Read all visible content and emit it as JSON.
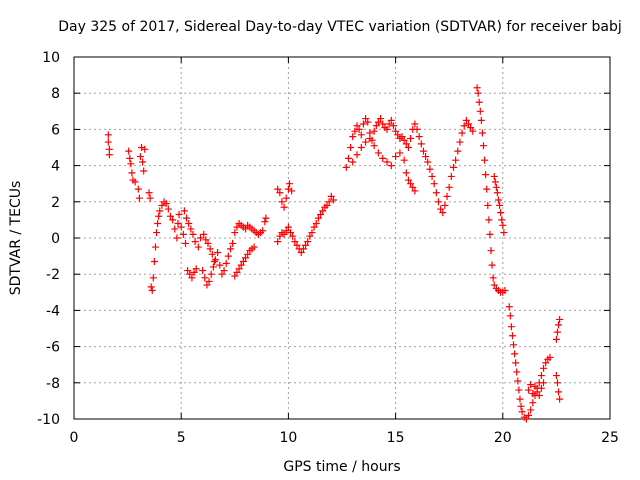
{
  "chart_data": {
    "type": "scatter",
    "title": "Day 325 of 2017, Sidereal Day-to-day VTEC variation (SDTVAR) for receiver babj",
    "xlabel": "GPS time / hours",
    "ylabel": "SDTVAR / TECUs",
    "xlim": [
      0,
      25
    ],
    "ylim": [
      -10,
      10
    ],
    "x_ticks": [
      0,
      5,
      10,
      15,
      20,
      25
    ],
    "y_ticks": [
      -10,
      -8,
      -6,
      -4,
      -2,
      0,
      2,
      4,
      6,
      8,
      10
    ],
    "grid": true,
    "legend": "none",
    "marker": "plus",
    "color": "#ff0000",
    "points": [
      [
        1.6,
        5.7
      ],
      [
        1.6,
        5.3
      ],
      [
        1.65,
        4.9
      ],
      [
        1.65,
        4.6
      ],
      [
        2.55,
        4.8
      ],
      [
        2.6,
        4.4
      ],
      [
        2.65,
        4.1
      ],
      [
        2.7,
        3.6
      ],
      [
        2.75,
        3.2
      ],
      [
        2.85,
        3.1
      ],
      [
        3.0,
        2.7
      ],
      [
        3.05,
        2.2
      ],
      [
        3.1,
        4.5
      ],
      [
        3.15,
        5.0
      ],
      [
        3.2,
        4.2
      ],
      [
        3.25,
        3.7
      ],
      [
        3.3,
        4.9
      ],
      [
        3.5,
        2.5
      ],
      [
        3.55,
        2.2
      ],
      [
        3.6,
        -2.7
      ],
      [
        3.65,
        -2.9
      ],
      [
        3.7,
        -2.2
      ],
      [
        3.75,
        -1.3
      ],
      [
        3.8,
        -0.5
      ],
      [
        3.85,
        0.3
      ],
      [
        3.9,
        0.8
      ],
      [
        3.95,
        1.2
      ],
      [
        4.0,
        1.5
      ],
      [
        4.1,
        1.8
      ],
      [
        4.2,
        2.0
      ],
      [
        4.3,
        1.9
      ],
      [
        4.4,
        1.6
      ],
      [
        4.5,
        1.2
      ],
      [
        4.6,
        1.0
      ],
      [
        4.7,
        0.5
      ],
      [
        4.8,
        0.0
      ],
      [
        4.85,
        0.8
      ],
      [
        4.9,
        1.3
      ],
      [
        5.0,
        0.6
      ],
      [
        5.1,
        0.2
      ],
      [
        5.2,
        -0.3
      ],
      [
        5.3,
        -1.8
      ],
      [
        5.4,
        -2.0
      ],
      [
        5.5,
        -2.2
      ],
      [
        5.6,
        -1.9
      ],
      [
        5.7,
        -1.7
      ],
      [
        5.15,
        1.5
      ],
      [
        5.25,
        1.1
      ],
      [
        5.35,
        0.8
      ],
      [
        5.45,
        0.5
      ],
      [
        5.55,
        0.2
      ],
      [
        5.65,
        -0.2
      ],
      [
        5.8,
        -0.5
      ],
      [
        5.9,
        0.0
      ],
      [
        6.0,
        -1.8
      ],
      [
        6.1,
        -2.2
      ],
      [
        6.2,
        -2.6
      ],
      [
        6.3,
        -2.4
      ],
      [
        6.4,
        -2.0
      ],
      [
        6.5,
        -1.6
      ],
      [
        6.6,
        -1.2
      ],
      [
        6.7,
        -0.8
      ],
      [
        6.8,
        -1.5
      ],
      [
        6.9,
        -2.0
      ],
      [
        7.0,
        -1.8
      ],
      [
        6.05,
        0.2
      ],
      [
        6.15,
        -0.1
      ],
      [
        6.25,
        -0.3
      ],
      [
        6.35,
        -0.6
      ],
      [
        6.45,
        -0.9
      ],
      [
        6.55,
        -1.3
      ],
      [
        7.1,
        -1.4
      ],
      [
        7.2,
        -1.0
      ],
      [
        7.3,
        -0.6
      ],
      [
        7.4,
        -0.3
      ],
      [
        7.5,
        0.3
      ],
      [
        7.6,
        0.6
      ],
      [
        7.7,
        0.8
      ],
      [
        7.8,
        0.7
      ],
      [
        7.9,
        0.6
      ],
      [
        8.0,
        0.5
      ],
      [
        8.1,
        0.7
      ],
      [
        8.2,
        0.6
      ],
      [
        8.3,
        0.5
      ],
      [
        8.4,
        0.4
      ],
      [
        8.5,
        0.3
      ],
      [
        8.6,
        0.2
      ],
      [
        8.7,
        0.3
      ],
      [
        8.8,
        0.4
      ],
      [
        7.5,
        -2.1
      ],
      [
        7.6,
        -1.9
      ],
      [
        7.7,
        -1.7
      ],
      [
        7.8,
        -1.5
      ],
      [
        7.9,
        -1.3
      ],
      [
        8.0,
        -1.1
      ],
      [
        8.1,
        -0.9
      ],
      [
        8.2,
        -0.7
      ],
      [
        8.3,
        -0.6
      ],
      [
        8.4,
        -0.5
      ],
      [
        8.9,
        0.9
      ],
      [
        8.95,
        1.1
      ],
      [
        9.5,
        2.7
      ],
      [
        9.6,
        2.5
      ],
      [
        9.7,
        2.0
      ],
      [
        9.8,
        1.7
      ],
      [
        9.9,
        2.2
      ],
      [
        10.0,
        2.7
      ],
      [
        10.05,
        3.0
      ],
      [
        10.15,
        2.6
      ],
      [
        9.5,
        -0.2
      ],
      [
        9.6,
        0.1
      ],
      [
        9.7,
        0.3
      ],
      [
        9.8,
        0.2
      ],
      [
        9.9,
        0.4
      ],
      [
        10.0,
        0.6
      ],
      [
        10.1,
        0.3
      ],
      [
        10.2,
        0.1
      ],
      [
        10.3,
        -0.2
      ],
      [
        10.4,
        -0.4
      ],
      [
        10.5,
        -0.6
      ],
      [
        10.6,
        -0.8
      ],
      [
        10.7,
        -0.6
      ],
      [
        10.8,
        -0.4
      ],
      [
        10.9,
        -0.2
      ],
      [
        11.0,
        0.1
      ],
      [
        11.1,
        0.3
      ],
      [
        11.2,
        0.6
      ],
      [
        11.3,
        0.8
      ],
      [
        11.4,
        1.1
      ],
      [
        11.5,
        1.3
      ],
      [
        11.6,
        1.5
      ],
      [
        11.7,
        1.7
      ],
      [
        11.8,
        1.8
      ],
      [
        11.9,
        2.0
      ],
      [
        12.0,
        2.3
      ],
      [
        12.1,
        2.1
      ],
      [
        12.7,
        3.9
      ],
      [
        12.8,
        4.4
      ],
      [
        12.9,
        5.0
      ],
      [
        13.0,
        5.6
      ],
      [
        13.1,
        5.9
      ],
      [
        13.2,
        6.2
      ],
      [
        13.3,
        6.0
      ],
      [
        13.4,
        5.7
      ],
      [
        13.5,
        6.3
      ],
      [
        13.6,
        6.6
      ],
      [
        13.7,
        6.4
      ],
      [
        13.8,
        5.8
      ],
      [
        13.9,
        5.4
      ],
      [
        14.0,
        5.9
      ],
      [
        14.1,
        6.2
      ],
      [
        14.2,
        6.4
      ],
      [
        14.3,
        6.6
      ],
      [
        14.4,
        6.3
      ],
      [
        14.5,
        6.1
      ],
      [
        14.6,
        6.0
      ],
      [
        14.7,
        6.3
      ],
      [
        14.8,
        6.5
      ],
      [
        14.9,
        6.2
      ],
      [
        15.0,
        5.9
      ],
      [
        15.1,
        5.7
      ],
      [
        15.2,
        5.5
      ],
      [
        15.3,
        5.6
      ],
      [
        15.4,
        5.4
      ],
      [
        15.5,
        5.2
      ],
      [
        15.6,
        5.0
      ],
      [
        15.7,
        5.5
      ],
      [
        15.8,
        6.0
      ],
      [
        15.9,
        6.3
      ],
      [
        16.0,
        6.0
      ],
      [
        16.1,
        5.6
      ],
      [
        16.2,
        5.2
      ],
      [
        16.3,
        4.8
      ],
      [
        16.4,
        4.5
      ],
      [
        16.5,
        4.2
      ],
      [
        16.6,
        3.8
      ],
      [
        16.7,
        3.4
      ],
      [
        16.8,
        3.0
      ],
      [
        13.0,
        4.2
      ],
      [
        13.2,
        4.6
      ],
      [
        13.4,
        5.0
      ],
      [
        13.6,
        5.3
      ],
      [
        13.8,
        5.5
      ],
      [
        14.0,
        5.1
      ],
      [
        14.2,
        4.7
      ],
      [
        14.4,
        4.4
      ],
      [
        14.6,
        4.2
      ],
      [
        14.8,
        4.0
      ],
      [
        15.0,
        4.5
      ],
      [
        15.2,
        4.7
      ],
      [
        15.4,
        4.3
      ],
      [
        15.5,
        3.6
      ],
      [
        15.6,
        3.2
      ],
      [
        15.7,
        3.0
      ],
      [
        15.8,
        2.8
      ],
      [
        15.9,
        2.6
      ],
      [
        16.9,
        2.5
      ],
      [
        17.0,
        2.0
      ],
      [
        17.1,
        1.6
      ],
      [
        17.2,
        1.4
      ],
      [
        17.3,
        1.8
      ],
      [
        17.4,
        2.3
      ],
      [
        17.5,
        2.8
      ],
      [
        17.6,
        3.4
      ],
      [
        17.7,
        3.9
      ],
      [
        17.8,
        4.3
      ],
      [
        17.9,
        4.8
      ],
      [
        18.0,
        5.3
      ],
      [
        18.1,
        5.8
      ],
      [
        18.2,
        6.2
      ],
      [
        18.3,
        6.5
      ],
      [
        18.4,
        6.3
      ],
      [
        18.5,
        6.1
      ],
      [
        18.6,
        5.9
      ],
      [
        18.8,
        8.3
      ],
      [
        18.85,
        8.0
      ],
      [
        18.9,
        7.5
      ],
      [
        18.95,
        7.0
      ],
      [
        19.0,
        6.5
      ],
      [
        19.05,
        5.8
      ],
      [
        19.1,
        5.1
      ],
      [
        19.15,
        4.3
      ],
      [
        19.2,
        3.5
      ],
      [
        19.25,
        2.7
      ],
      [
        19.3,
        1.8
      ],
      [
        19.35,
        1.0
      ],
      [
        19.4,
        0.2
      ],
      [
        19.45,
        -0.7
      ],
      [
        19.5,
        -1.5
      ],
      [
        19.55,
        -2.2
      ],
      [
        19.6,
        -2.6
      ],
      [
        19.7,
        -2.8
      ],
      [
        19.8,
        -2.9
      ],
      [
        19.9,
        -3.0
      ],
      [
        20.0,
        -3.0
      ],
      [
        20.1,
        -2.9
      ],
      [
        19.6,
        3.4
      ],
      [
        19.65,
        3.1
      ],
      [
        19.7,
        2.8
      ],
      [
        19.75,
        2.5
      ],
      [
        19.8,
        2.1
      ],
      [
        19.85,
        1.8
      ],
      [
        19.9,
        1.4
      ],
      [
        19.95,
        1.0
      ],
      [
        20.0,
        0.7
      ],
      [
        20.05,
        0.3
      ],
      [
        20.3,
        -3.8
      ],
      [
        20.35,
        -4.3
      ],
      [
        20.4,
        -4.9
      ],
      [
        20.45,
        -5.4
      ],
      [
        20.5,
        -5.9
      ],
      [
        20.55,
        -6.4
      ],
      [
        20.6,
        -6.9
      ],
      [
        20.65,
        -7.4
      ],
      [
        20.7,
        -7.9
      ],
      [
        20.75,
        -8.4
      ],
      [
        20.8,
        -8.9
      ],
      [
        20.85,
        -9.3
      ],
      [
        20.9,
        -9.6
      ],
      [
        21.0,
        -9.9
      ],
      [
        21.1,
        -10.0
      ],
      [
        21.2,
        -9.8
      ],
      [
        21.3,
        -9.5
      ],
      [
        21.4,
        -9.1
      ],
      [
        21.5,
        -8.7
      ],
      [
        21.6,
        -8.3
      ],
      [
        21.7,
        -8.0
      ],
      [
        21.8,
        -7.6
      ],
      [
        21.9,
        -7.2
      ],
      [
        22.0,
        -6.9
      ],
      [
        22.1,
        -6.7
      ],
      [
        22.2,
        -6.6
      ],
      [
        21.2,
        -8.4
      ],
      [
        21.3,
        -8.1
      ],
      [
        21.4,
        -8.6
      ],
      [
        21.5,
        -8.2
      ],
      [
        21.6,
        -8.5
      ],
      [
        21.7,
        -8.7
      ],
      [
        21.8,
        -8.3
      ],
      [
        21.9,
        -8.0
      ],
      [
        22.5,
        -7.6
      ],
      [
        22.55,
        -8.0
      ],
      [
        22.6,
        -8.5
      ],
      [
        22.65,
        -8.9
      ],
      [
        22.5,
        -5.6
      ],
      [
        22.55,
        -5.2
      ],
      [
        22.6,
        -4.8
      ],
      [
        22.65,
        -4.5
      ]
    ]
  }
}
